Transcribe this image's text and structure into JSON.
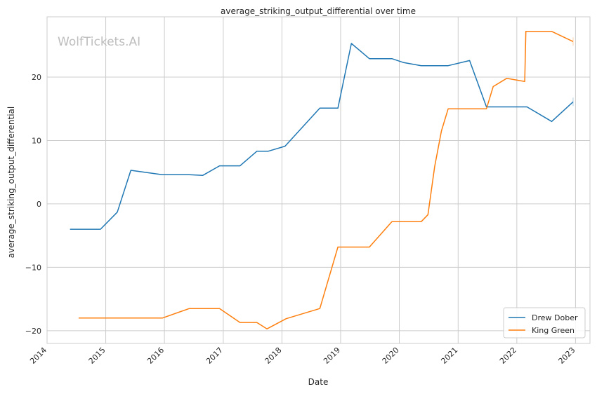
{
  "chart_data": {
    "type": "line",
    "title": "average_striking_output_differential over time",
    "xlabel": "Date",
    "ylabel": "average_striking_output_differential",
    "watermark": "WolfTickets.AI",
    "xlim": [
      "2014-01-01",
      "2023-04-01"
    ],
    "ylim": [
      -22,
      29.5
    ],
    "x_ticks": [
      "2014",
      "2015",
      "2016",
      "2017",
      "2018",
      "2019",
      "2020",
      "2021",
      "2022",
      "2023"
    ],
    "y_ticks": [
      -20,
      -10,
      0,
      10,
      20
    ],
    "y_tick_labels": [
      "−20",
      "−10",
      "0",
      "10",
      "20"
    ],
    "grid": true,
    "legend_position": "lower-right",
    "series": [
      {
        "name": "Drew Dober",
        "color": "#1f77b4",
        "points": [
          [
            "2014-05-24",
            -4.0
          ],
          [
            "2014-11-29",
            -4.0
          ],
          [
            "2015-03-14",
            -1.3
          ],
          [
            "2015-06-06",
            5.3
          ],
          [
            "2015-12-19",
            4.6
          ],
          [
            "2016-06-04",
            4.6
          ],
          [
            "2016-08-27",
            4.5
          ],
          [
            "2016-12-09",
            6.0
          ],
          [
            "2017-04-15",
            6.0
          ],
          [
            "2017-07-29",
            8.3
          ],
          [
            "2017-10-07",
            8.3
          ],
          [
            "2018-01-20",
            9.1
          ],
          [
            "2018-08-25",
            15.1
          ],
          [
            "2018-12-15",
            15.1
          ],
          [
            "2019-03-09",
            25.3
          ],
          [
            "2019-06-29",
            22.9
          ],
          [
            "2019-11-16",
            22.9
          ],
          [
            "2020-01-25",
            22.3
          ],
          [
            "2020-05-16",
            21.8
          ],
          [
            "2020-10-31",
            21.8
          ],
          [
            "2021-03-13",
            22.6
          ],
          [
            "2021-06-26",
            15.3
          ],
          [
            "2022-03-05",
            15.3
          ],
          [
            "2022-08-06",
            13.0
          ],
          [
            "2022-12-17",
            16.1
          ]
        ]
      },
      {
        "name": "King Green",
        "color": "#ff7f0e",
        "points": [
          [
            "2014-07-16",
            -18.0
          ],
          [
            "2015-12-19",
            -18.0
          ],
          [
            "2016-06-04",
            -16.5
          ],
          [
            "2016-12-09",
            -16.5
          ],
          [
            "2017-04-15",
            -18.7
          ],
          [
            "2017-07-29",
            -18.7
          ],
          [
            "2017-09-30",
            -19.7
          ],
          [
            "2018-01-27",
            -18.1
          ],
          [
            "2018-08-25",
            -16.5
          ],
          [
            "2018-12-15",
            -6.8
          ],
          [
            "2019-06-29",
            -6.8
          ],
          [
            "2019-11-16",
            -2.8
          ],
          [
            "2020-05-16",
            -2.8
          ],
          [
            "2020-06-27",
            -1.7
          ],
          [
            "2020-08-08",
            5.9
          ],
          [
            "2020-09-19",
            11.5
          ],
          [
            "2020-10-31",
            15.0
          ],
          [
            "2021-06-26",
            15.0
          ],
          [
            "2021-08-07",
            18.5
          ],
          [
            "2021-10-30",
            19.8
          ],
          [
            "2022-02-19",
            19.3
          ],
          [
            "2022-02-26",
            27.2
          ],
          [
            "2022-08-06",
            27.2
          ],
          [
            "2022-12-17",
            25.6
          ]
        ]
      }
    ]
  }
}
